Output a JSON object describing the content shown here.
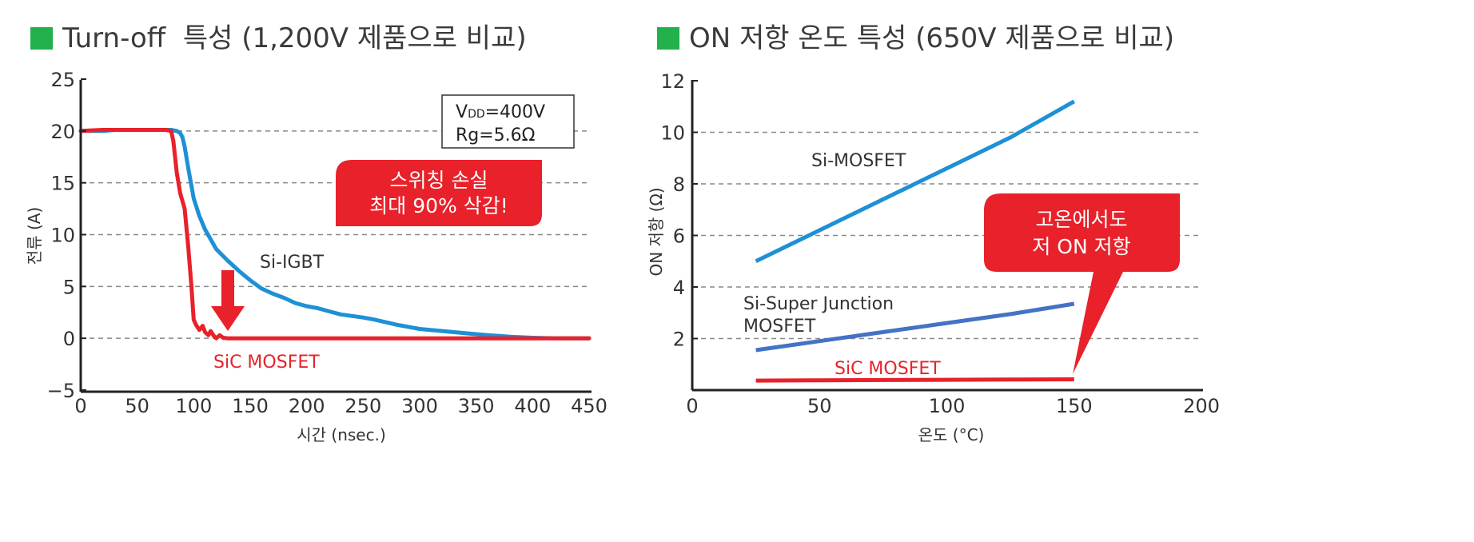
{
  "chart_data": [
    {
      "type": "line",
      "title": "Turn-off  특성 (1,200V 제품으로 비교)",
      "xlabel": "시간 (nsec.)",
      "ylabel": "전류 (A)",
      "xlim": [
        0,
        450
      ],
      "ylim": [
        -5,
        25
      ],
      "xticks": [
        0,
        50,
        100,
        150,
        200,
        250,
        300,
        350,
        400,
        450
      ],
      "yticks": [
        -5,
        0,
        5,
        10,
        15,
        20,
        25
      ],
      "ytick_labels": [
        "−5",
        "0",
        "5",
        "10",
        "15",
        "20",
        "25"
      ],
      "grid": "horizontal dashed",
      "series": [
        {
          "name": "Si-IGBT",
          "color": "#1e90d6",
          "x": [
            0,
            20,
            30,
            50,
            70,
            80,
            85,
            88,
            90,
            92,
            95,
            100,
            105,
            110,
            120,
            130,
            140,
            150,
            160,
            170,
            180,
            190,
            200,
            210,
            220,
            230,
            250,
            260,
            280,
            300,
            320,
            340,
            360,
            380,
            400,
            420,
            450
          ],
          "y": [
            20,
            20,
            20.1,
            20.1,
            20.1,
            20.1,
            20,
            19.8,
            19.4,
            18.5,
            16.5,
            13.5,
            11.8,
            10.5,
            8.6,
            7.5,
            6.5,
            5.6,
            4.8,
            4.3,
            3.9,
            3.4,
            3.1,
            2.9,
            2.6,
            2.3,
            2.0,
            1.8,
            1.3,
            0.9,
            0.7,
            0.5,
            0.3,
            0.15,
            0.05,
            0,
            0
          ]
        },
        {
          "name": "SiC MOSFET",
          "color": "#e8212a",
          "x": [
            0,
            20,
            40,
            60,
            75,
            80,
            82,
            85,
            88,
            92,
            95,
            98,
            100,
            102,
            105,
            108,
            110,
            113,
            115,
            118,
            120,
            123,
            126,
            130,
            140,
            150,
            200,
            300,
            400,
            450
          ],
          "y": [
            20,
            20.1,
            20.1,
            20.1,
            20.1,
            20,
            19,
            16,
            14,
            12.5,
            9,
            5,
            1.8,
            1.3,
            0.8,
            1.2,
            0.6,
            0.3,
            0.7,
            0.2,
            0,
            0.3,
            0.05,
            0,
            0,
            0,
            0,
            0,
            0,
            0
          ]
        }
      ],
      "annotations": {
        "conditions_line1_main": "V",
        "conditions_line1_sub": "DD",
        "conditions_line1_rest": "=400V",
        "conditions_line2": "Rg=5.6Ω",
        "callout_line1": "스위칭 손실",
        "callout_line2": "최대 90% 삭감!",
        "callout_color": "#e8212a"
      }
    },
    {
      "type": "line",
      "title": "ON 저항 온도 특성 (650V 제품으로 비교)",
      "xlabel": "온도 (°C)",
      "ylabel": "ON 저항 (Ω)",
      "xlim": [
        0,
        200
      ],
      "ylim": [
        0,
        12
      ],
      "xticks": [
        0,
        50,
        100,
        150,
        200
      ],
      "yticks": [
        2,
        4,
        6,
        8,
        10,
        12
      ],
      "grid": "horizontal dashed",
      "series": [
        {
          "name": "Si-MOSFET",
          "color": "#1e90d6",
          "x": [
            25,
            50,
            75,
            100,
            125,
            150
          ],
          "y": [
            5.0,
            6.2,
            7.4,
            8.6,
            9.8,
            11.2
          ]
        },
        {
          "name": "Si-Super Junction\nMOSFET",
          "label_line1": "Si-Super Junction",
          "label_line2": "MOSFET",
          "color": "#4472c4",
          "x": [
            25,
            50,
            75,
            100,
            125,
            150
          ],
          "y": [
            1.55,
            1.9,
            2.25,
            2.6,
            2.95,
            3.35
          ]
        },
        {
          "name": "SiC MOSFET",
          "color": "#e8212a",
          "x": [
            25,
            50,
            75,
            100,
            125,
            150
          ],
          "y": [
            0.37,
            0.38,
            0.39,
            0.4,
            0.41,
            0.42
          ]
        }
      ],
      "annotations": {
        "callout_line1": "고온에서도",
        "callout_line2": "저 ON 저항",
        "callout_color": "#e8212a"
      }
    }
  ]
}
